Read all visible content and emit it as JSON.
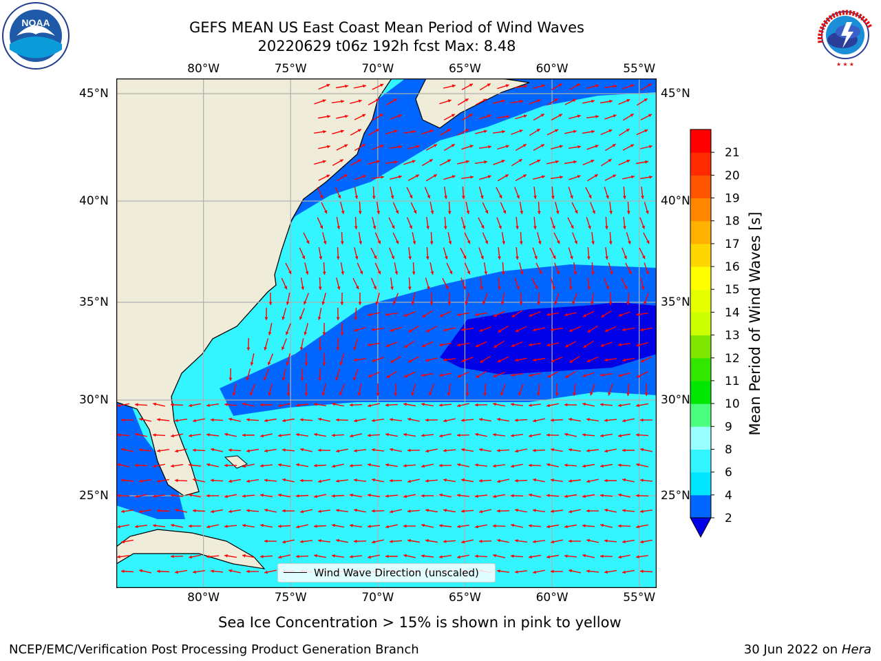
{
  "header": {
    "title_line1": "GEFS MEAN US East Coast Mean Period of Wind Waves",
    "title_line2": "20220629 t06z 192h fcst   Max: 8.48"
  },
  "logos": {
    "left": {
      "icon": "noaa-logo-icon",
      "text": "NOAA"
    },
    "right": {
      "icon": "nws-logo-icon",
      "text": "NATIONAL WEATHER SERVICE"
    }
  },
  "map": {
    "lon_range": [
      -85,
      -54
    ],
    "lat_range": [
      20.5,
      45.8
    ],
    "lon_labels": [
      "80°W",
      "75°W",
      "70°W",
      "65°W",
      "60°W",
      "55°W"
    ],
    "lat_labels": [
      "45°N",
      "40°N",
      "35°N",
      "30°N",
      "25°N"
    ],
    "legend_label": "Wind Wave Direction (unscaled)",
    "land_color": "#efedd9",
    "arrow_color": "#ff0000",
    "grid_color": "#b0b0b0"
  },
  "colorbar": {
    "label": "Mean Period of Wind Waves [s]",
    "levels": [
      "2",
      "4",
      "6",
      "8",
      "9",
      "10",
      "11",
      "12",
      "13",
      "14",
      "15",
      "16",
      "17",
      "18",
      "19",
      "20",
      "21"
    ],
    "colors": [
      "#0066ff",
      "#00e6ff",
      "#33f5ff",
      "#99ffff",
      "#4dff80",
      "#00e600",
      "#33e600",
      "#80e600",
      "#ccff00",
      "#e6ff00",
      "#ffff00",
      "#ffd700",
      "#ffb000",
      "#ff8800",
      "#ff5500",
      "#ff2a00",
      "#ff0000"
    ],
    "under_color": "#0000e6"
  },
  "footer": {
    "note": "Sea Ice Concentration > 15% is shown in pink to yellow",
    "left": "NCEP/EMC/Verification Post Processing Product Generation Branch",
    "right_date": "30 Jun 2022 on",
    "right_host": "Hera"
  }
}
